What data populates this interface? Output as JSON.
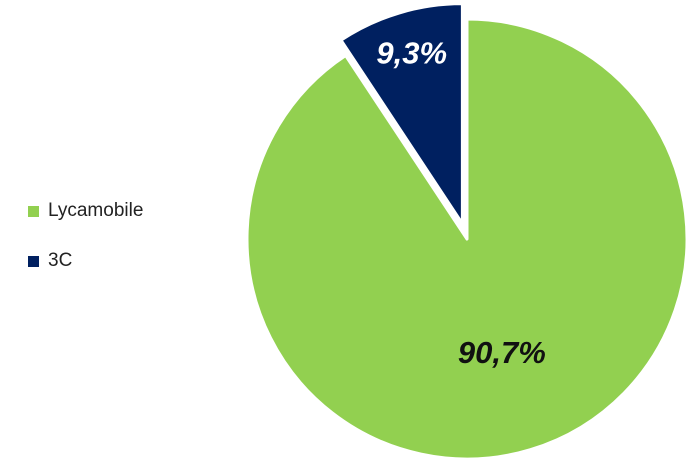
{
  "chart_data": {
    "type": "pie",
    "categories": [
      "Lycamobile",
      "3C"
    ],
    "values": [
      90.7,
      9.3
    ],
    "labels": [
      "90,7%",
      "9,3%"
    ],
    "colors": [
      "#92d050",
      "#002060"
    ],
    "label_colors": [
      "#111111",
      "#ffffff"
    ],
    "exploded": [
      false,
      true
    ],
    "start_angle": "12 o'clock",
    "direction": "clockwise",
    "legend_position": "left"
  }
}
